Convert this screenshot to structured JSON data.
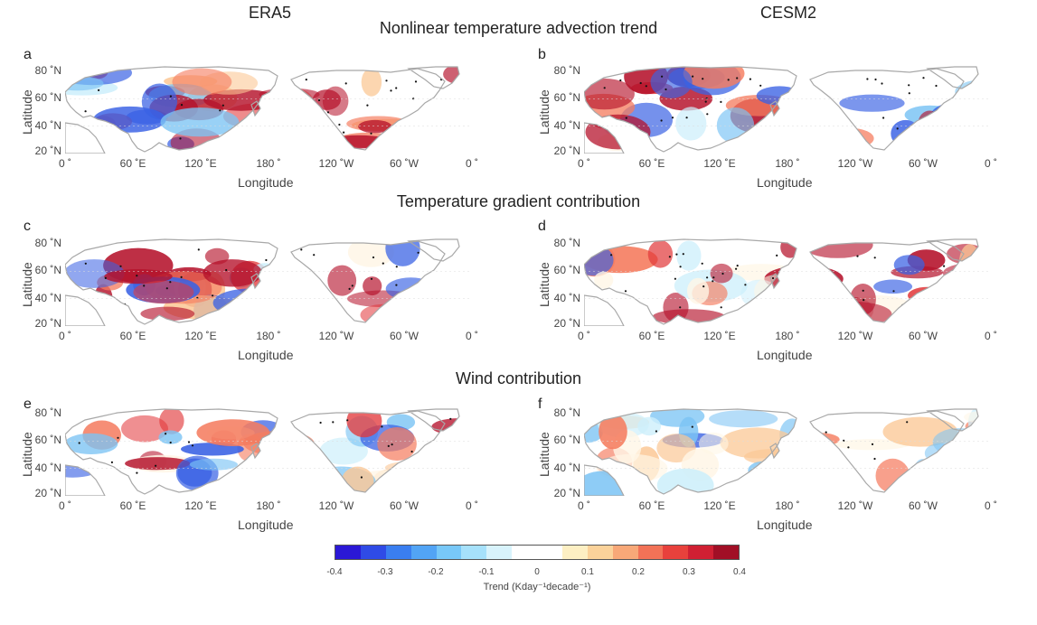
{
  "columns": {
    "left": "ERA5",
    "right": "CESM2"
  },
  "rows": [
    {
      "title": "Nonlinear temperature advection trend"
    },
    {
      "title": "Temperature gradient contribution"
    },
    {
      "title": "Wind contribution"
    }
  ],
  "panels": [
    {
      "letter": "a",
      "dataset": "ERA5",
      "row": 0
    },
    {
      "letter": "b",
      "dataset": "CESM2",
      "row": 0
    },
    {
      "letter": "c",
      "dataset": "ERA5",
      "row": 1
    },
    {
      "letter": "d",
      "dataset": "CESM2",
      "row": 1
    },
    {
      "letter": "e",
      "dataset": "ERA5",
      "row": 2
    },
    {
      "letter": "f",
      "dataset": "CESM2",
      "row": 2
    }
  ],
  "axes": {
    "ylabel": "Latitude",
    "xlabel": "Longitude",
    "yticks": [
      "80 ˚N",
      "60 ˚N",
      "40 ˚N",
      "20 ˚N"
    ],
    "xticks": [
      "0 ˚",
      "60 ˚E",
      "120 ˚E",
      "180 ˚",
      "120 ˚W",
      "60 ˚W",
      "0 ˚"
    ]
  },
  "colorbar": {
    "label": "Trend (Kday⁻¹decade⁻¹)",
    "ticks": [
      "-0.4",
      "-0.3",
      "-0.2",
      "-0.1",
      "0",
      "0.1",
      "0.2",
      "0.3",
      "0.4"
    ],
    "colors": [
      "#2b18d6",
      "#2f4be6",
      "#3a7ef0",
      "#52a4f5",
      "#78c8f8",
      "#a6e1fb",
      "#d8f3fc",
      "#ffffff",
      "#ffffff",
      "#fdefc3",
      "#fbd29a",
      "#f8a878",
      "#f27257",
      "#e8413c",
      "#d02033",
      "#a10f26"
    ]
  }
}
